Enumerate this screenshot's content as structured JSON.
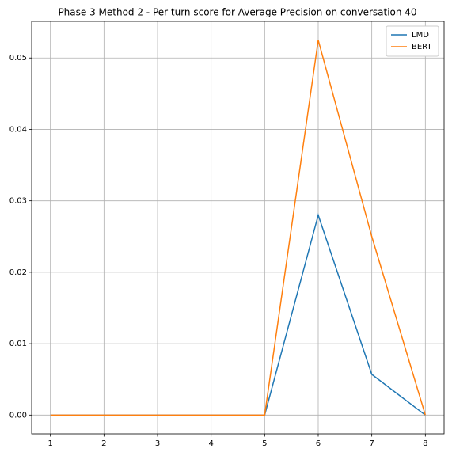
{
  "chart_data": {
    "type": "line",
    "title": "Phase 3 Method 2 - Per turn score for Average Precision on conversation 40",
    "x": [
      1,
      2,
      3,
      4,
      5,
      6,
      7,
      8
    ],
    "series": [
      {
        "name": "LMD",
        "color": "#1f77b4",
        "values": [
          0,
          0,
          0,
          0,
          0,
          0.028,
          0.0057,
          0
        ]
      },
      {
        "name": "BERT",
        "color": "#ff7f0e",
        "values": [
          0,
          0,
          0,
          0,
          0,
          0.0525,
          0.025,
          0
        ]
      }
    ],
    "xlim": [
      0.65,
      8.35
    ],
    "xticks": [
      1,
      2,
      3,
      4,
      5,
      6,
      7,
      8
    ],
    "ylim": [
      -0.002625,
      0.055125
    ],
    "yticks": [
      {
        "value": 0,
        "label": "0.00"
      },
      {
        "value": 0.01,
        "label": "0.01"
      },
      {
        "value": 0.02,
        "label": "0.02"
      },
      {
        "value": 0.03,
        "label": "0.03"
      },
      {
        "value": 0.04,
        "label": "0.04"
      },
      {
        "value": 0.05,
        "label": "0.05"
      }
    ],
    "grid": true,
    "legend": "upper-right"
  }
}
